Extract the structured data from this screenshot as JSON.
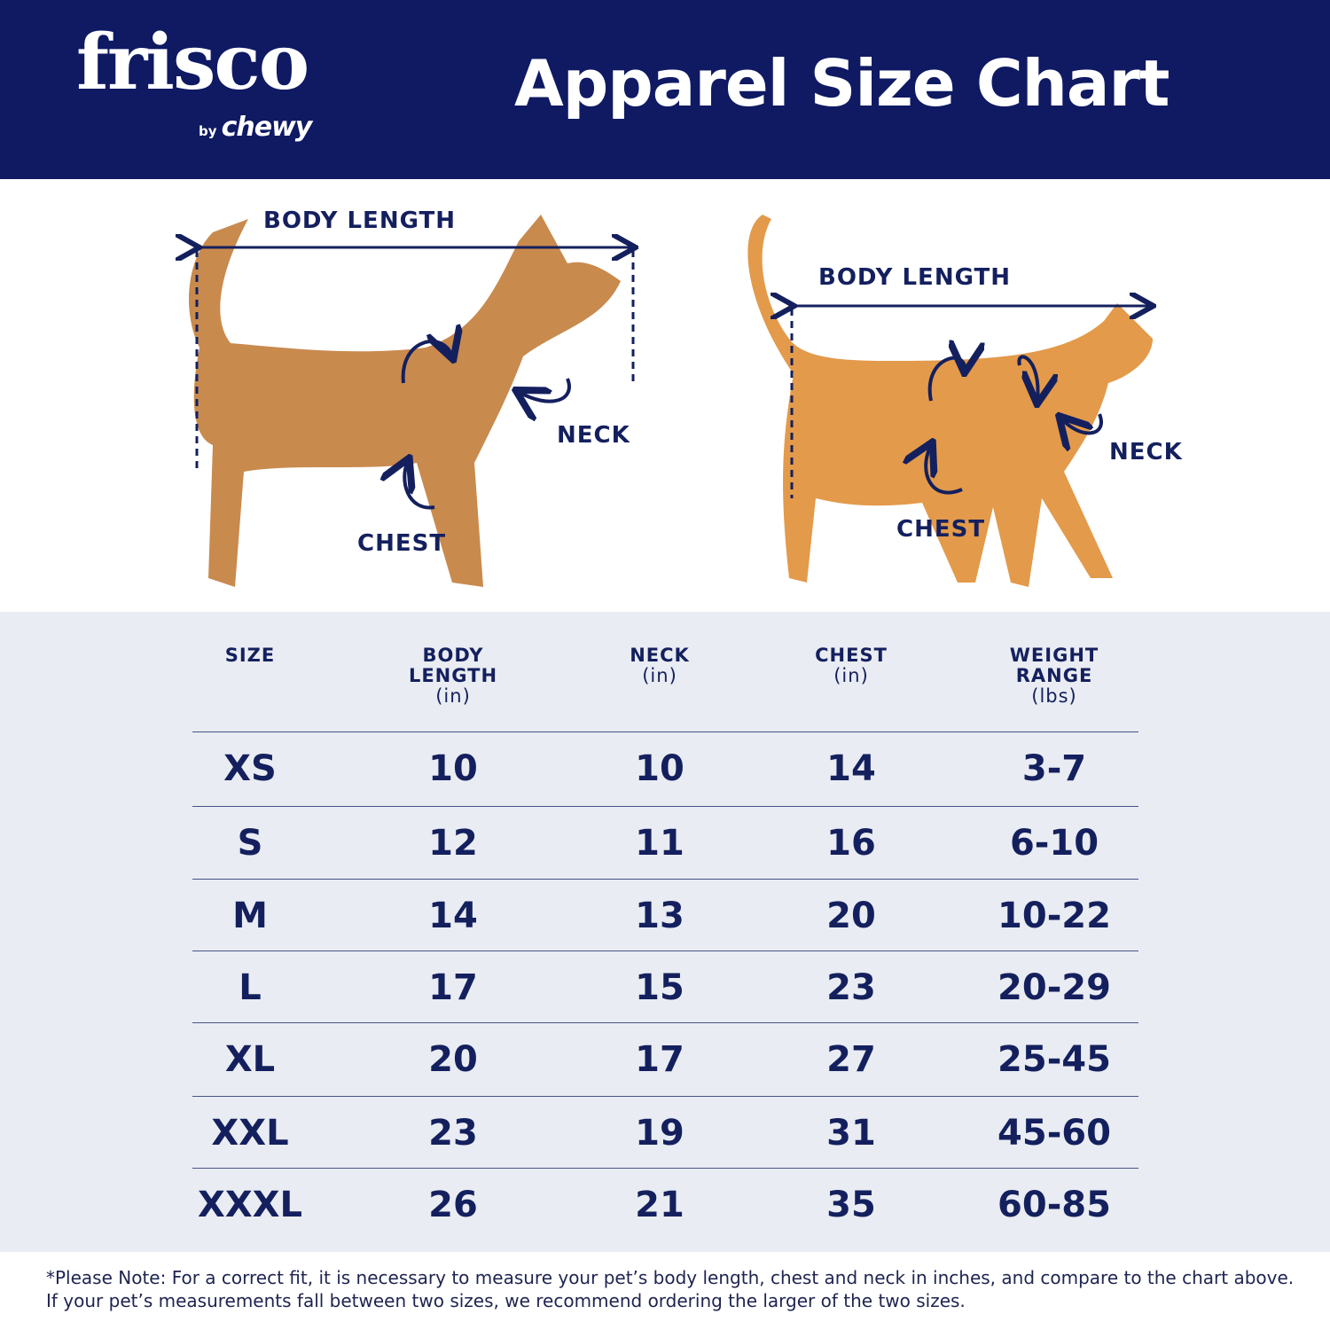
{
  "brand": {
    "logo_main": "frisco",
    "logo_by": "by",
    "logo_sub": "chewy"
  },
  "title": "Apparel Size Chart",
  "colors": {
    "navy": "#0f1a63",
    "table_bg": "#e9ecf2",
    "dog_fur": "#c98a4e",
    "cat_fur": "#e39a4a"
  },
  "diagram": {
    "dog": {
      "body_length": "BODY LENGTH",
      "neck": "NECK",
      "chest": "CHEST"
    },
    "cat": {
      "body_length": "BODY LENGTH",
      "neck": "NECK",
      "chest": "CHEST"
    }
  },
  "table": {
    "headers": [
      {
        "label": "SIZE",
        "unit": ""
      },
      {
        "label": "BODY LENGTH",
        "unit": "(in)"
      },
      {
        "label": "NECK",
        "unit": "(in)"
      },
      {
        "label": "CHEST",
        "unit": "(in)"
      },
      {
        "label": "WEIGHT RANGE",
        "unit": "(lbs)"
      }
    ],
    "rows": [
      [
        "XS",
        "10",
        "10",
        "14",
        "3-7"
      ],
      [
        "S",
        "12",
        "11",
        "16",
        "6-10"
      ],
      [
        "M",
        "14",
        "13",
        "20",
        "10-22"
      ],
      [
        "L",
        "17",
        "15",
        "23",
        "20-29"
      ],
      [
        "XL",
        "20",
        "17",
        "27",
        "25-45"
      ],
      [
        "XXL",
        "23",
        "19",
        "31",
        "45-60"
      ],
      [
        "XXXL",
        "26",
        "21",
        "35",
        "60-85"
      ]
    ]
  },
  "note": "*Please Note: For a correct fit, it is necessary to measure your pet’s body length, chest and neck in inches, and compare to the chart above. If your pet’s measurements fall between two sizes, we recommend ordering the larger of the two sizes."
}
